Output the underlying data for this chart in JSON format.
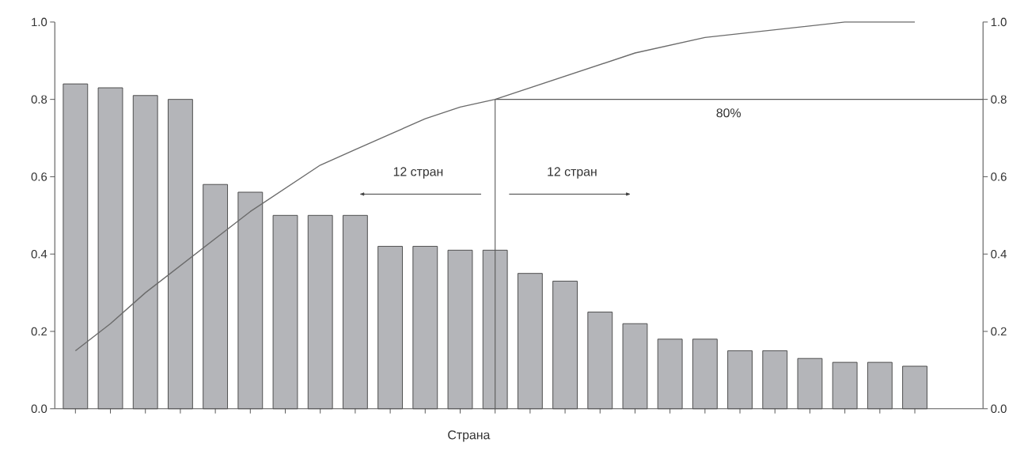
{
  "chart_data": {
    "type": "bar",
    "xlabel": "Страна",
    "categories": [
      null,
      null,
      null,
      null,
      null,
      null,
      null,
      null,
      null,
      null,
      null,
      null,
      null,
      null,
      null,
      null,
      null,
      null,
      null,
      null,
      null,
      null,
      null,
      null,
      null
    ],
    "series": [
      {
        "color": "#b4b5b9",
        "values": [
          0.84,
          0.83,
          0.81,
          0.8,
          0.58,
          0.56,
          0.5,
          0.5,
          0.5,
          0.42,
          0.42,
          0.41,
          0.41,
          0.35,
          0.33,
          0.25,
          0.22,
          0.18,
          0.18,
          0.15,
          0.15,
          0.13,
          0.12,
          0.12,
          0.11
        ]
      },
      {
        "type": "line",
        "axis": "y2",
        "color": "#6b6b6b",
        "values": [
          0.15,
          0.22,
          0.3,
          0.37,
          0.44,
          0.51,
          0.57,
          0.63,
          0.67,
          0.71,
          0.75,
          0.78,
          0.8,
          0.83,
          0.86,
          0.89,
          0.92,
          0.94,
          0.96,
          0.97,
          0.98,
          0.99,
          1.0,
          1.0,
          1.0
        ]
      }
    ],
    "ylim": [
      0,
      1
    ],
    "yticks": [
      {
        "value": 0,
        "label": "0.0"
      },
      0.2,
      0.4,
      0.6,
      0.8,
      {
        "value": 1,
        "label": "1.0"
      }
    ],
    "y2lim": [
      0,
      1
    ],
    "y2ticks": [
      {
        "value": 0,
        "label": "0.0"
      },
      0.2,
      0.4,
      0.6,
      0.8,
      {
        "value": 1,
        "label": "1.0"
      }
    ],
    "ref_lines": [
      {
        "axis": "y2",
        "value": 0.8,
        "label": "80%"
      }
    ],
    "annotations": [
      "12 стран",
      "12 стран"
    ]
  }
}
